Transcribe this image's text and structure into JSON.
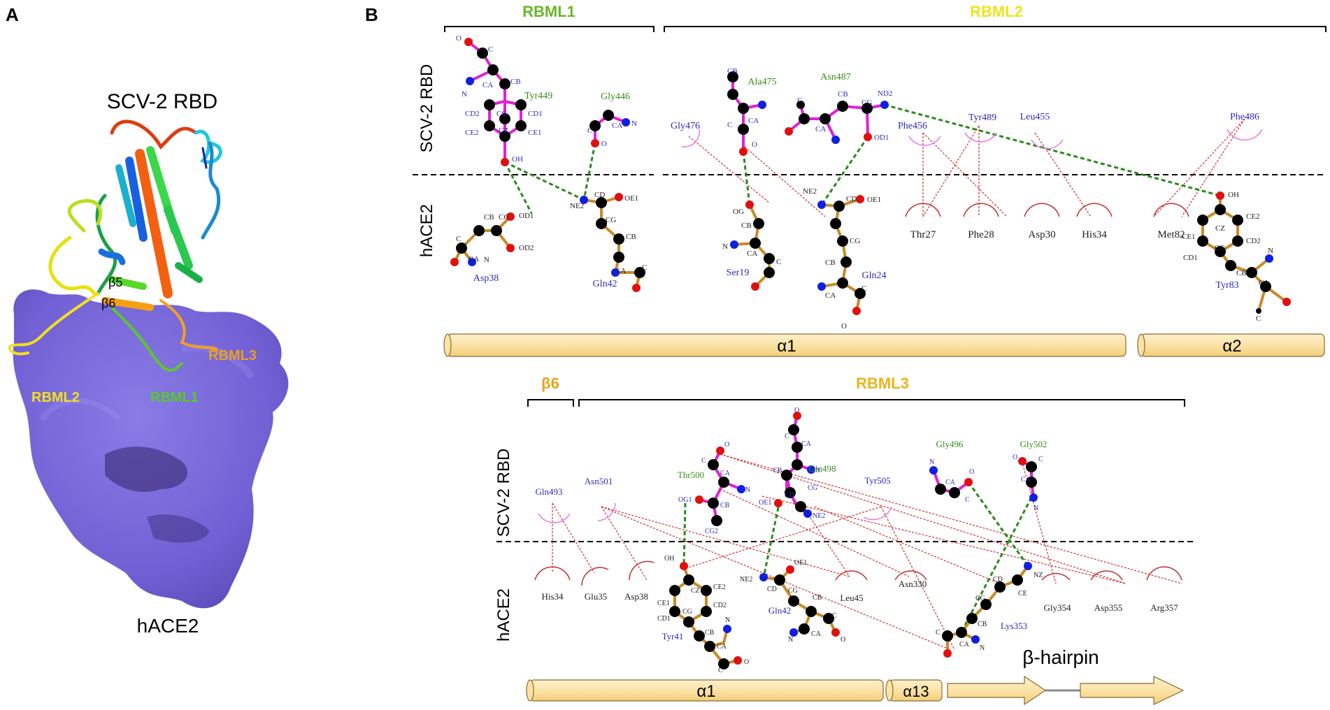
{
  "panel_a": {
    "letter": "A",
    "top_label": "SCV-2 RBD",
    "bottom_label": "hACE2",
    "loops": {
      "rbml1": "RBML1",
      "rbml2": "RBML2",
      "rbml3": "RBML3"
    },
    "strands": {
      "b5": "β5",
      "b6": "β6"
    }
  },
  "panel_b": {
    "letter": "B",
    "top": {
      "rbml1": "RBML1",
      "rbml2": "RBML2",
      "side_rbd": "SCV-2 RBD",
      "side_ace2": "hACE2",
      "helix1": "α1",
      "helix2": "α2",
      "res": {
        "tyr449": "Tyr449",
        "gly446": "Gly446",
        "ala475": "Ala475",
        "asn487": "Asn487",
        "gly476": "Gly476",
        "phe456": "Phe456",
        "tyr489": "Tyr489",
        "leu455": "Leu455",
        "phe486": "Phe486",
        "asp38": "Asp38",
        "gln42": "Gln42",
        "ser19": "Ser19",
        "gln24": "Gln24",
        "thr27": "Thr27",
        "phe28": "Phe28",
        "asp30": "Asp30",
        "his34": "His34",
        "met82": "Met82",
        "tyr83": "Tyr83"
      },
      "atoms": {
        "o": "O",
        "c": "C",
        "ca": "CA",
        "cb": "CB",
        "n": "N",
        "cg": "CG",
        "cz": "CZ",
        "cd1": "CD1",
        "cd2": "CD2",
        "ce1": "CE1",
        "ce2": "CE2",
        "oh": "OH",
        "od1": "OD1",
        "od2": "OD2",
        "ne2": "NE2",
        "oe1": "OE1",
        "cd": "CD",
        "nd2": "ND2",
        "og": "OG"
      }
    },
    "bottom": {
      "b6": "β6",
      "rbml3": "RBML3",
      "side_rbd": "SCV-2 RBD",
      "side_ace2": "hACE2",
      "helix1": "α1",
      "helix13": "α13",
      "hairpin": "β-hairpin",
      "res": {
        "gln493": "Gln493",
        "asn501": "Asn501",
        "thr500": "Thr500",
        "gln498": "Gln498",
        "tyr505": "Tyr505",
        "gly496": "Gly496",
        "gly502": "Gly502",
        "his34": "His34",
        "glu35": "Glu35",
        "asp38": "Asp38",
        "tyr41": "Tyr41",
        "gln42": "Gln42",
        "leu45": "Leu45",
        "asn330": "Asn330",
        "lys353": "Lys353",
        "gly354": "Gly354",
        "asp355": "Asp355",
        "arg357": "Arg357"
      },
      "atoms": {
        "o": "O",
        "c": "C",
        "ca": "CA",
        "cb": "CB",
        "n": "N",
        "og1": "OG1",
        "cg2": "CG2",
        "cg": "CG",
        "cd": "CD",
        "oe1": "OE1",
        "ne2": "NE2",
        "oh": "OH",
        "cz": "CZ",
        "ce1": "CE1",
        "ce2": "CE2",
        "cd1": "CD1",
        "cd2": "CD2",
        "ce": "CE",
        "nz": "NZ"
      }
    },
    "colors": {
      "rbml1": "#6bb52a",
      "rbml2": "#f2e21c",
      "rbml3": "#e8b61d",
      "b6": "#e8a21d",
      "rbd_residue": "#2b2bb8",
      "rbd_green": "#3a8a1a",
      "ace_residue": "#222222",
      "hbond": "#2a8a1a",
      "contact": "#d03030",
      "rbd_bond": "#e020d8",
      "ace_bond": "#c98a28",
      "oxygen": "#e01010",
      "nitrogen": "#1020e0",
      "carbon": "#000000",
      "surface": "#7565d9",
      "helix_fill": "#fbe3a6"
    }
  }
}
